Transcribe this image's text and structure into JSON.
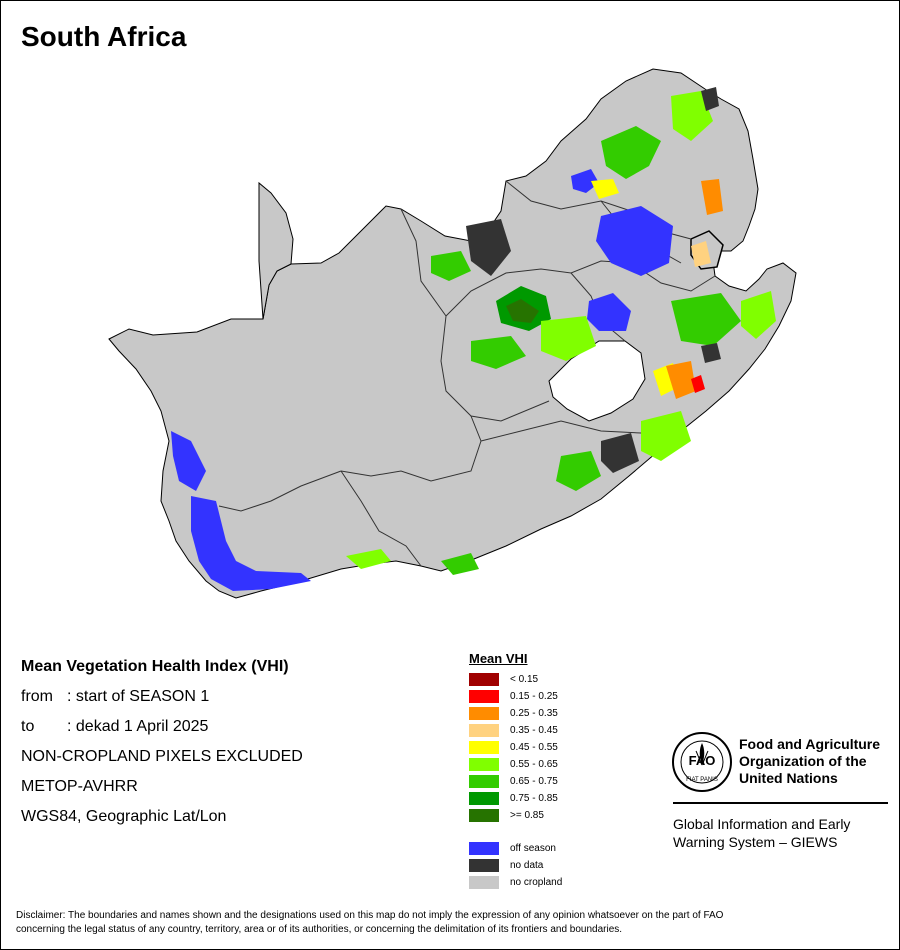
{
  "map": {
    "title": "South Africa"
  },
  "info": {
    "heading": "Mean Vegetation Health Index (VHI)",
    "from_label": "from",
    "from_value": ": start of SEASON 1",
    "to_label": "to",
    "to_value": ": dekad 1 April 2025",
    "line_excluded": "NON-CROPLAND PIXELS EXCLUDED",
    "line_sensor": "METOP-AVHRR",
    "line_projection": "WGS84, Geographic Lat/Lon"
  },
  "legend": {
    "title": "Mean VHI",
    "classes": [
      {
        "label": "< 0.15",
        "color": "#a00000"
      },
      {
        "label": "0.15 - 0.25",
        "color": "#ff0000"
      },
      {
        "label": "0.25 - 0.35",
        "color": "#ff8c00"
      },
      {
        "label": "0.35 - 0.45",
        "color": "#ffd280"
      },
      {
        "label": "0.45 - 0.55",
        "color": "#ffff00"
      },
      {
        "label": "0.55 - 0.65",
        "color": "#80ff00"
      },
      {
        "label": "0.65 - 0.75",
        "color": "#33cc00"
      },
      {
        "label": "0.75 - 0.85",
        "color": "#009900"
      },
      {
        "label": ">= 0.85",
        "color": "#267300"
      }
    ],
    "extra": [
      {
        "label": "off season",
        "color": "#3333ff"
      },
      {
        "label": "no data",
        "color": "#333333"
      },
      {
        "label": "no cropland",
        "color": "#c8c8c8"
      }
    ]
  },
  "fao": {
    "logo_text": "FAO",
    "motto": "FIAT PANIS",
    "name_line1": "Food and Agriculture",
    "name_line2": "Organization of the",
    "name_line3": "United Nations",
    "giews_line1": "Global Information and Early",
    "giews_line2": "Warning System – GIEWS"
  },
  "disclaimer": {
    "line1": "Disclaimer: The boundaries and names shown and the designations used on this map do not imply the expression of any opinion whatsoever on the part of FAO",
    "line2": "concerning the legal status of any country, territory, area or of its authorities, or concerning the delimitation of its frontiers and boundaries."
  },
  "colors": {
    "land": "#c8c8c8",
    "border": "#000000"
  }
}
